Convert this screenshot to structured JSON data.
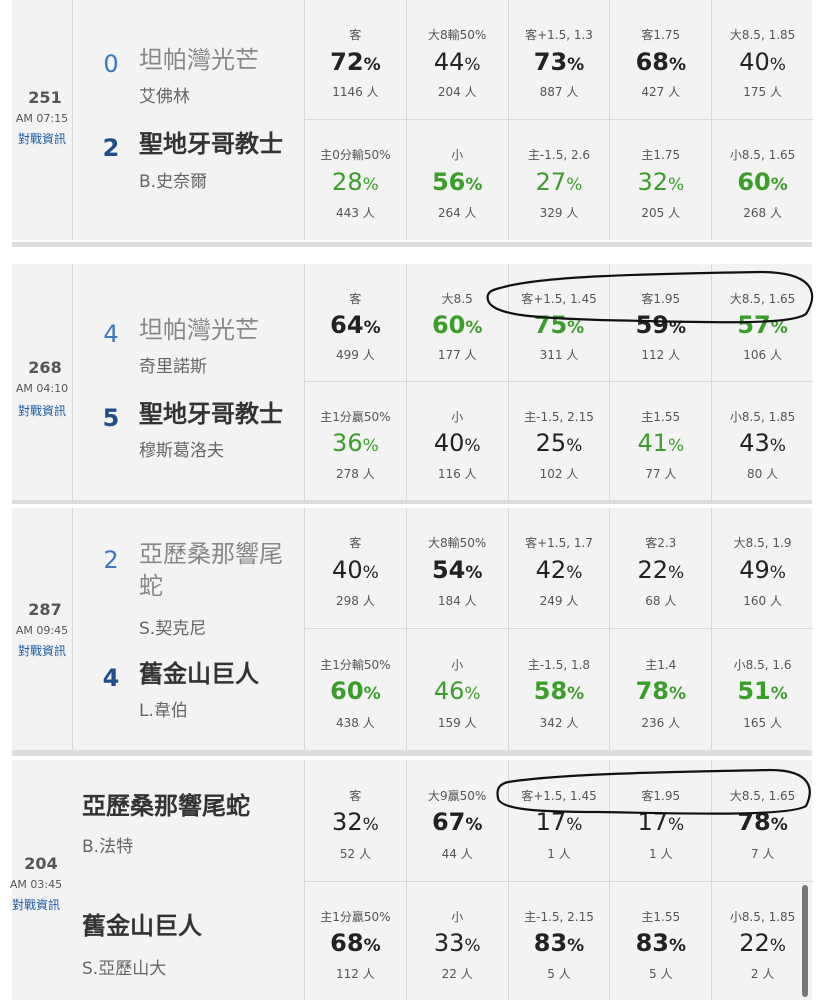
{
  "unit": "人",
  "pct_unit": "%",
  "games": [
    {
      "id": "251",
      "time": "AM 07:15",
      "link": "對戰資訊",
      "away": {
        "score": "0",
        "name": "坦帕灣光芒",
        "pitcher": "艾佛林"
      },
      "home": {
        "score": "2",
        "name": "聖地牙哥教士",
        "pitcher": "B.史奈爾"
      },
      "top": [
        {
          "label": "客",
          "pct": "72",
          "count": "1146",
          "bold": true,
          "green": false
        },
        {
          "label": "大8輸50%",
          "pct": "44",
          "count": "204",
          "bold": false,
          "green": false
        },
        {
          "label": "客+1.5, 1.3",
          "pct": "73",
          "count": "887",
          "bold": true,
          "green": false
        },
        {
          "label": "客1.75",
          "pct": "68",
          "count": "427",
          "bold": true,
          "green": false
        },
        {
          "label": "大8.5, 1.85",
          "pct": "40",
          "count": "175",
          "bold": false,
          "green": false
        }
      ],
      "bottom": [
        {
          "label": "主0分輸50%",
          "pct": "28",
          "count": "443",
          "bold": false,
          "green": true
        },
        {
          "label": "小",
          "pct": "56",
          "count": "264",
          "bold": true,
          "green": true
        },
        {
          "label": "主-1.5, 2.6",
          "pct": "27",
          "count": "329",
          "bold": false,
          "green": true
        },
        {
          "label": "主1.75",
          "pct": "32",
          "count": "205",
          "bold": false,
          "green": true
        },
        {
          "label": "小8.5, 1.65",
          "pct": "60",
          "count": "268",
          "bold": true,
          "green": true
        }
      ]
    },
    {
      "id": "268",
      "time": "AM 04:10",
      "link": "對戰資訊",
      "away": {
        "score": "4",
        "name": "坦帕灣光芒",
        "pitcher": "奇里諾斯"
      },
      "home": {
        "score": "5",
        "name": "聖地牙哥教士",
        "pitcher": "穆斯葛洛夫"
      },
      "top": [
        {
          "label": "客",
          "pct": "64",
          "count": "499",
          "bold": true,
          "green": false
        },
        {
          "label": "大8.5",
          "pct": "60",
          "count": "177",
          "bold": true,
          "green": true
        },
        {
          "label": "客+1.5, 1.45",
          "pct": "75",
          "count": "311",
          "bold": true,
          "green": true
        },
        {
          "label": "客1.95",
          "pct": "59",
          "count": "112",
          "bold": true,
          "green": false
        },
        {
          "label": "大8.5, 1.65",
          "pct": "57",
          "count": "106",
          "bold": true,
          "green": true
        }
      ],
      "bottom": [
        {
          "label": "主1分贏50%",
          "pct": "36",
          "count": "278",
          "bold": false,
          "green": true
        },
        {
          "label": "小",
          "pct": "40",
          "count": "116",
          "bold": false,
          "green": false
        },
        {
          "label": "主-1.5, 2.15",
          "pct": "25",
          "count": "102",
          "bold": false,
          "green": false
        },
        {
          "label": "主1.55",
          "pct": "41",
          "count": "77",
          "bold": false,
          "green": true
        },
        {
          "label": "小8.5, 1.85",
          "pct": "43",
          "count": "80",
          "bold": false,
          "green": false
        }
      ]
    },
    {
      "id": "287",
      "time": "AM 09:45",
      "link": "對戰資訊",
      "away": {
        "score": "2",
        "name": "亞歷桑那響尾蛇",
        "pitcher": "S.契克尼"
      },
      "home": {
        "score": "4",
        "name": "舊金山巨人",
        "pitcher": "L.韋伯"
      },
      "top": [
        {
          "label": "客",
          "pct": "40",
          "count": "298",
          "bold": false,
          "green": false
        },
        {
          "label": "大8輸50%",
          "pct": "54",
          "count": "184",
          "bold": true,
          "green": false
        },
        {
          "label": "客+1.5, 1.7",
          "pct": "42",
          "count": "249",
          "bold": false,
          "green": false
        },
        {
          "label": "客2.3",
          "pct": "22",
          "count": "68",
          "bold": false,
          "green": false
        },
        {
          "label": "大8.5, 1.9",
          "pct": "49",
          "count": "160",
          "bold": false,
          "green": false
        }
      ],
      "bottom": [
        {
          "label": "主1分輸50%",
          "pct": "60",
          "count": "438",
          "bold": true,
          "green": true
        },
        {
          "label": "小",
          "pct": "46",
          "count": "159",
          "bold": false,
          "green": true
        },
        {
          "label": "主-1.5, 1.8",
          "pct": "58",
          "count": "342",
          "bold": true,
          "green": true
        },
        {
          "label": "主1.4",
          "pct": "78",
          "count": "236",
          "bold": true,
          "green": true
        },
        {
          "label": "小8.5, 1.6",
          "pct": "51",
          "count": "165",
          "bold": true,
          "green": true
        }
      ]
    },
    {
      "id": "204",
      "time": "AM 03:45",
      "link": "對戰資訊",
      "away": {
        "score": "",
        "name": "亞歷桑那響尾蛇",
        "pitcher": "B.法特"
      },
      "home": {
        "score": "",
        "name": "舊金山巨人",
        "pitcher": "S.亞歷山大"
      },
      "top": [
        {
          "label": "客",
          "pct": "32",
          "count": "52",
          "bold": false,
          "green": false
        },
        {
          "label": "大9贏50%",
          "pct": "67",
          "count": "44",
          "bold": true,
          "green": false
        },
        {
          "label": "客+1.5, 1.45",
          "pct": "17",
          "count": "1",
          "bold": false,
          "green": false
        },
        {
          "label": "客1.95",
          "pct": "17",
          "count": "1",
          "bold": false,
          "green": false
        },
        {
          "label": "大8.5, 1.65",
          "pct": "78",
          "count": "7",
          "bold": true,
          "green": false
        }
      ],
      "bottom": [
        {
          "label": "主1分贏50%",
          "pct": "68",
          "count": "112",
          "bold": true,
          "green": false
        },
        {
          "label": "小",
          "pct": "33",
          "count": "22",
          "bold": false,
          "green": false
        },
        {
          "label": "主-1.5, 2.15",
          "pct": "83",
          "count": "5",
          "bold": true,
          "green": false
        },
        {
          "label": "主1.55",
          "pct": "83",
          "count": "5",
          "bold": true,
          "green": false
        },
        {
          "label": "小8.5, 1.85",
          "pct": "22",
          "count": "2",
          "bold": false,
          "green": false
        }
      ]
    }
  ]
}
